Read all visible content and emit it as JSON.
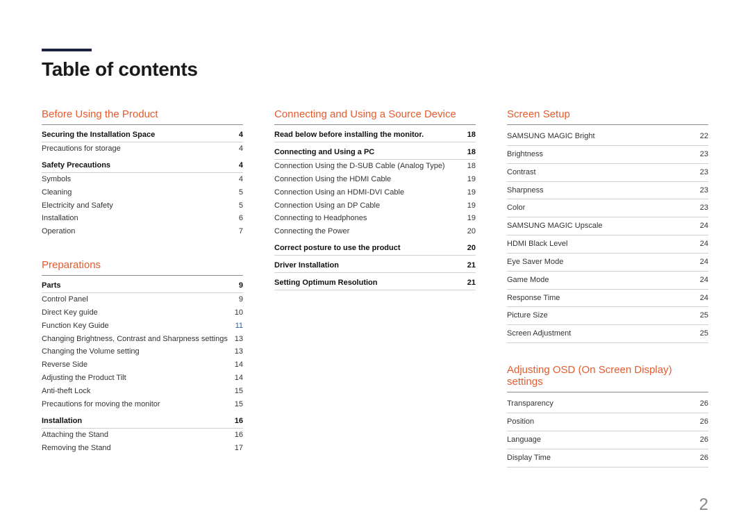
{
  "title": "Table of contents",
  "page_number": "2",
  "colors": {
    "accent": "#e85a2b",
    "title_bar": "#1a2340",
    "link": "#2a5da8",
    "text": "#333333",
    "rule": "#d0d0d0",
    "section_rule": "#8a8a8a"
  },
  "columns": [
    {
      "sections": [
        {
          "title": "Before Using the Product",
          "groups": [
            {
              "head": {
                "label": "Securing the Installation Space",
                "page": "4"
              },
              "items": [
                {
                  "label": "Precautions for storage",
                  "page": "4"
                }
              ]
            },
            {
              "head": {
                "label": "Safety Precautions",
                "page": "4"
              },
              "items": [
                {
                  "label": "Symbols",
                  "page": "4"
                },
                {
                  "label": "Cleaning",
                  "page": "5"
                },
                {
                  "label": "Electricity and Safety",
                  "page": "5"
                },
                {
                  "label": "Installation",
                  "page": "6"
                },
                {
                  "label": "Operation",
                  "page": "7"
                }
              ]
            }
          ]
        },
        {
          "title": "Preparations",
          "groups": [
            {
              "head": {
                "label": "Parts",
                "page": "9"
              },
              "items": [
                {
                  "label": "Control Panel",
                  "page": "9"
                },
                {
                  "label": "Direct Key guide",
                  "page": "10"
                },
                {
                  "label": "Function Key Guide",
                  "page": "11",
                  "link": true
                },
                {
                  "label": "Changing Brightness, Contrast and Sharpness settings",
                  "page": "13"
                },
                {
                  "label": "Changing the Volume setting",
                  "page": "13"
                },
                {
                  "label": "Reverse Side",
                  "page": "14"
                },
                {
                  "label": "Adjusting the Product Tilt",
                  "page": "14"
                },
                {
                  "label": "Anti-theft Lock",
                  "page": "15"
                },
                {
                  "label": "Precautions for moving the monitor",
                  "page": "15"
                }
              ]
            },
            {
              "head": {
                "label": "Installation",
                "page": "16"
              },
              "items": [
                {
                  "label": "Attaching the Stand",
                  "page": "16"
                },
                {
                  "label": "Removing the Stand",
                  "page": "17"
                }
              ]
            }
          ]
        }
      ]
    },
    {
      "sections": [
        {
          "title": "Connecting and Using a Source Device",
          "groups": [
            {
              "head": {
                "label": "Read below before installing the monitor.",
                "page": "18"
              },
              "items": []
            },
            {
              "head": {
                "label": "Connecting and Using a PC",
                "page": "18"
              },
              "items": [
                {
                  "label": "Connection Using the D-SUB Cable (Analog Type)",
                  "page": "18"
                },
                {
                  "label": "Connection Using the HDMI Cable",
                  "page": "19"
                },
                {
                  "label": "Connection Using an HDMI-DVI Cable",
                  "page": "19"
                },
                {
                  "label": "Connection Using an DP Cable",
                  "page": "19"
                },
                {
                  "label": "Connecting to Headphones",
                  "page": "19"
                },
                {
                  "label": "Connecting the Power",
                  "page": "20"
                }
              ]
            },
            {
              "head": {
                "label": "Correct posture to use the product",
                "page": "20"
              },
              "items": []
            },
            {
              "head": {
                "label": "Driver Installation",
                "page": "21"
              },
              "items": []
            },
            {
              "head": {
                "label": "Setting Optimum Resolution",
                "page": "21"
              },
              "items": []
            }
          ]
        }
      ]
    },
    {
      "sections": [
        {
          "title": "Screen Setup",
          "flat_items": [
            {
              "label": "SAMSUNG MAGIC Bright",
              "page": "22"
            },
            {
              "label": "Brightness",
              "page": "23"
            },
            {
              "label": "Contrast",
              "page": "23"
            },
            {
              "label": "Sharpness",
              "page": "23"
            },
            {
              "label": "Color",
              "page": "23"
            },
            {
              "label": "SAMSUNG MAGIC Upscale",
              "page": "24"
            },
            {
              "label": "HDMI Black Level",
              "page": "24"
            },
            {
              "label": "Eye Saver Mode",
              "page": "24"
            },
            {
              "label": "Game Mode",
              "page": "24"
            },
            {
              "label": "Response Time",
              "page": "24"
            },
            {
              "label": "Picture Size",
              "page": "25"
            },
            {
              "label": "Screen Adjustment",
              "page": "25"
            }
          ]
        },
        {
          "title": "Adjusting OSD (On Screen Display) settings",
          "flat_items": [
            {
              "label": "Transparency",
              "page": "26"
            },
            {
              "label": "Position",
              "page": "26"
            },
            {
              "label": "Language",
              "page": "26"
            },
            {
              "label": "Display Time",
              "page": "26"
            }
          ]
        }
      ]
    }
  ]
}
